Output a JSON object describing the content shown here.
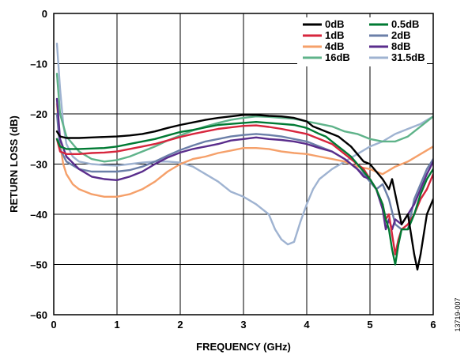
{
  "chart_data": {
    "type": "line",
    "title": "",
    "xlabel": "FREQUENCY (GHz)",
    "ylabel": "RETURN LOSS (dB)",
    "xlim": [
      0,
      6
    ],
    "ylim": [
      -60,
      0
    ],
    "xticks": [
      "0",
      "1",
      "2",
      "3",
      "4",
      "5",
      "6"
    ],
    "yticks": [
      "0",
      "–10",
      "–20",
      "–30",
      "–40",
      "–50",
      "–60"
    ],
    "grid": true,
    "legend_position": "top-right",
    "figure_id": "13719-007",
    "series": [
      {
        "name": "0dB",
        "color": "#000000",
        "x": [
          0.05,
          0.1,
          0.2,
          0.4,
          0.6,
          0.8,
          1.0,
          1.2,
          1.4,
          1.6,
          1.8,
          2.0,
          2.2,
          2.4,
          2.6,
          2.8,
          3.0,
          3.2,
          3.4,
          3.6,
          3.8,
          4.0,
          4.1,
          4.2,
          4.3,
          4.4,
          4.5,
          4.6,
          4.7,
          4.8,
          4.9,
          5.0,
          5.1,
          5.2,
          5.3,
          5.35,
          5.4,
          5.45,
          5.5,
          5.6,
          5.7,
          5.75,
          5.8,
          5.9,
          6.0
        ],
        "y": [
          -23.5,
          -24.5,
          -24.8,
          -24.8,
          -24.7,
          -24.6,
          -24.5,
          -24.3,
          -24,
          -23.5,
          -22.8,
          -22.2,
          -21.7,
          -21.2,
          -20.8,
          -20.5,
          -20.2,
          -20.2,
          -20.4,
          -20.5,
          -20.8,
          -21.5,
          -22.5,
          -23,
          -23.5,
          -24,
          -24.5,
          -25.5,
          -26.5,
          -28,
          -29.5,
          -30,
          -31.5,
          -33,
          -35,
          -33,
          -36,
          -39,
          -42,
          -40,
          -48,
          -51,
          -48,
          -40,
          -37
        ]
      },
      {
        "name": "0.5dB",
        "color": "#007a33",
        "x": [
          0.05,
          0.1,
          0.2,
          0.4,
          0.6,
          0.8,
          1.0,
          1.2,
          1.4,
          1.6,
          1.8,
          2.0,
          2.2,
          2.4,
          2.6,
          2.8,
          3.0,
          3.2,
          3.4,
          3.6,
          3.8,
          4.0,
          4.2,
          4.3,
          4.4,
          4.5,
          4.6,
          4.7,
          4.8,
          4.9,
          5.0,
          5.1,
          5.2,
          5.25,
          5.3,
          5.35,
          5.4,
          5.45,
          5.5,
          5.6,
          5.7,
          5.8,
          5.9,
          6.0
        ],
        "y": [
          -25,
          -26.5,
          -27,
          -27,
          -26.9,
          -26.8,
          -26.5,
          -26,
          -25.5,
          -25,
          -24.3,
          -23.6,
          -23.2,
          -22.7,
          -22.2,
          -22,
          -21.8,
          -21.6,
          -21.8,
          -22,
          -22.2,
          -22.8,
          -24,
          -24.5,
          -25.5,
          -26.5,
          -27.5,
          -28.5,
          -30,
          -31.5,
          -33,
          -35,
          -38,
          -41,
          -43,
          -47,
          -50,
          -46,
          -43,
          -43,
          -40,
          -36,
          -33,
          -31
        ]
      },
      {
        "name": "1dB",
        "color": "#d7263d",
        "x": [
          0.05,
          0.1,
          0.2,
          0.4,
          0.6,
          0.8,
          1.0,
          1.2,
          1.4,
          1.6,
          1.8,
          2.0,
          2.2,
          2.4,
          2.6,
          2.8,
          3.0,
          3.2,
          3.4,
          3.6,
          3.8,
          4.0,
          4.2,
          4.4,
          4.6,
          4.8,
          4.9,
          5.0,
          5.1,
          5.2,
          5.25,
          5.3,
          5.35,
          5.4,
          5.45,
          5.5,
          5.6,
          5.7,
          5.8,
          5.9,
          6.0
        ],
        "y": [
          -25,
          -27.5,
          -28,
          -28,
          -27.8,
          -27.7,
          -27.5,
          -27,
          -26.5,
          -26,
          -25.3,
          -24.6,
          -24,
          -23.5,
          -23,
          -22.7,
          -22.4,
          -22.3,
          -22.6,
          -23,
          -23.5,
          -24,
          -25,
          -26,
          -28,
          -30,
          -31,
          -33,
          -35,
          -38,
          -41,
          -40,
          -44,
          -48,
          -45,
          -43,
          -42,
          -40,
          -37,
          -35,
          -32
        ]
      },
      {
        "name": "2dB",
        "color": "#6b7fa8",
        "x": [
          0.05,
          0.1,
          0.2,
          0.4,
          0.6,
          0.8,
          1.0,
          1.2,
          1.4,
          1.6,
          1.8,
          2.0,
          2.2,
          2.4,
          2.6,
          2.8,
          3.0,
          3.2,
          3.4,
          3.6,
          3.8,
          4.0,
          4.2,
          4.4,
          4.6,
          4.8,
          4.9,
          5.0,
          5.1,
          5.2,
          5.3,
          5.4,
          5.5,
          5.6,
          5.7,
          5.8,
          5.9,
          6.0
        ],
        "y": [
          -20,
          -27,
          -29.5,
          -31,
          -31.5,
          -31.5,
          -31.5,
          -31.2,
          -30.5,
          -29.5,
          -28.3,
          -27.2,
          -26.3,
          -25.5,
          -25,
          -24.5,
          -24.2,
          -24,
          -24.2,
          -24.5,
          -25,
          -25.5,
          -26.5,
          -27.5,
          -29,
          -31,
          -32,
          -33.5,
          -35,
          -34,
          -37,
          -42,
          -43,
          -43,
          -37,
          -34,
          -31,
          -29
        ]
      },
      {
        "name": "4dB",
        "color": "#f5a06a",
        "x": [
          0.05,
          0.1,
          0.15,
          0.2,
          0.3,
          0.4,
          0.6,
          0.8,
          1.0,
          1.2,
          1.4,
          1.6,
          1.8,
          2.0,
          2.2,
          2.4,
          2.6,
          2.8,
          3.0,
          3.2,
          3.4,
          3.6,
          3.8,
          4.0,
          4.2,
          4.4,
          4.6,
          4.8,
          5.0,
          5.2,
          5.4,
          5.6,
          5.8,
          6.0
        ],
        "y": [
          -18,
          -26,
          -30,
          -32,
          -34,
          -35,
          -36,
          -36.5,
          -36.5,
          -36,
          -35,
          -33.5,
          -31.5,
          -30,
          -29,
          -28.5,
          -27.8,
          -27.3,
          -26.8,
          -26.8,
          -27,
          -27.5,
          -27.8,
          -28,
          -28.5,
          -29,
          -29.5,
          -30.5,
          -31,
          -32,
          -30.5,
          -29.5,
          -28,
          -26.5
        ]
      },
      {
        "name": "8dB",
        "color": "#5a2d8c",
        "x": [
          0.05,
          0.1,
          0.2,
          0.4,
          0.6,
          0.8,
          1.0,
          1.2,
          1.4,
          1.6,
          1.8,
          2.0,
          2.2,
          2.4,
          2.6,
          2.8,
          3.0,
          3.2,
          3.4,
          3.6,
          3.8,
          4.0,
          4.2,
          4.4,
          4.6,
          4.8,
          4.9,
          5.0,
          5.1,
          5.2,
          5.25,
          5.3,
          5.35,
          5.4,
          5.5,
          5.6,
          5.7,
          5.8,
          5.9,
          6.0
        ],
        "y": [
          -17,
          -25,
          -28.5,
          -31,
          -32.5,
          -33,
          -33.2,
          -32.5,
          -31.5,
          -30,
          -28.7,
          -27.7,
          -27,
          -26.5,
          -26,
          -25.3,
          -25,
          -24.7,
          -25,
          -25.2,
          -25.5,
          -26,
          -26.8,
          -27.5,
          -29,
          -31,
          -32.5,
          -33,
          -35,
          -39,
          -43,
          -41,
          -43,
          -41,
          -42,
          -40,
          -38,
          -35,
          -32,
          -29.5
        ]
      },
      {
        "name": "16dB",
        "color": "#5fb38a",
        "x": [
          0.05,
          0.1,
          0.2,
          0.4,
          0.6,
          0.8,
          1.0,
          1.2,
          1.4,
          1.6,
          1.8,
          2.0,
          2.2,
          2.4,
          2.6,
          2.8,
          3.0,
          3.2,
          3.4,
          3.6,
          3.8,
          4.0,
          4.2,
          4.4,
          4.6,
          4.8,
          5.0,
          5.2,
          5.4,
          5.6,
          5.8,
          6.0
        ],
        "y": [
          -12,
          -20,
          -24.5,
          -27.5,
          -29,
          -29.5,
          -29.2,
          -28.5,
          -27.5,
          -26.5,
          -25.3,
          -24.3,
          -23.3,
          -22.5,
          -21.8,
          -21.2,
          -20.8,
          -20.5,
          -20.6,
          -20.8,
          -21,
          -21.5,
          -22,
          -22.5,
          -23.5,
          -24,
          -25,
          -25.5,
          -25.5,
          -24.5,
          -22.5,
          -20.5
        ]
      },
      {
        "name": "31.5dB",
        "color": "#9fb3d1",
        "x": [
          0.05,
          0.1,
          0.15,
          0.2,
          0.3,
          0.4,
          0.6,
          0.8,
          1.0,
          1.2,
          1.4,
          1.6,
          1.8,
          2.0,
          2.2,
          2.4,
          2.6,
          2.8,
          3.0,
          3.2,
          3.4,
          3.5,
          3.6,
          3.7,
          3.8,
          3.9,
          4.0,
          4.1,
          4.2,
          4.4,
          4.6,
          4.8,
          5.0,
          5.2,
          5.4,
          5.6,
          5.8,
          6.0
        ],
        "y": [
          -6,
          -15,
          -22,
          -26,
          -28.5,
          -29.5,
          -30,
          -30.2,
          -30.3,
          -30,
          -29.7,
          -29.5,
          -29.5,
          -29.7,
          -30.5,
          -32,
          -33.5,
          -35.5,
          -36.5,
          -38,
          -40,
          -43,
          -45,
          -46,
          -45.5,
          -41.5,
          -38,
          -35,
          -33,
          -31,
          -29.5,
          -28,
          -26.5,
          -25.5,
          -24,
          -23,
          -22,
          -20.5
        ]
      }
    ]
  }
}
